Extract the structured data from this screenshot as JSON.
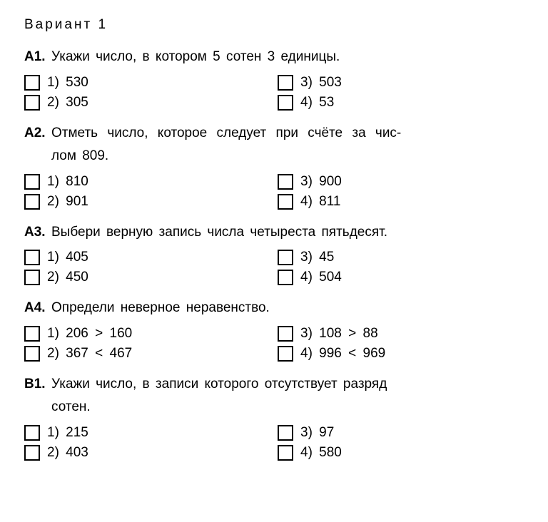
{
  "variant_title": "Вариант 1",
  "questions": [
    {
      "num": "А1.",
      "text": "Укажи число, в котором 5 сотен 3 единицы.",
      "wide": false,
      "options": [
        "1) 530",
        "3) 503",
        "2) 305",
        "4) 53"
      ]
    },
    {
      "num": "А2.",
      "text": "Отметь число, которое следует при счёте за чис-",
      "text_cont": "лом 809.",
      "wide": true,
      "options": [
        "1) 810",
        "3) 900",
        "2) 901",
        "4) 811"
      ]
    },
    {
      "num": "А3.",
      "text": "Выбери верную запись числа четыреста пятьдесят.",
      "wide": false,
      "options": [
        "1) 405",
        "3) 45",
        "2) 450",
        "4) 504"
      ]
    },
    {
      "num": "А4.",
      "text": "Определи неверное неравенство.",
      "wide": false,
      "options": [
        "1) 206 > 160",
        "3) 108 > 88",
        "2) 367 < 467",
        "4) 996 < 969"
      ]
    },
    {
      "num": "В1.",
      "text": "Укажи число, в записи которого отсутствует разряд",
      "text_cont": "сотен.",
      "wide": false,
      "options": [
        "1) 215",
        "3) 97",
        "2) 403",
        "4) 580"
      ]
    }
  ]
}
